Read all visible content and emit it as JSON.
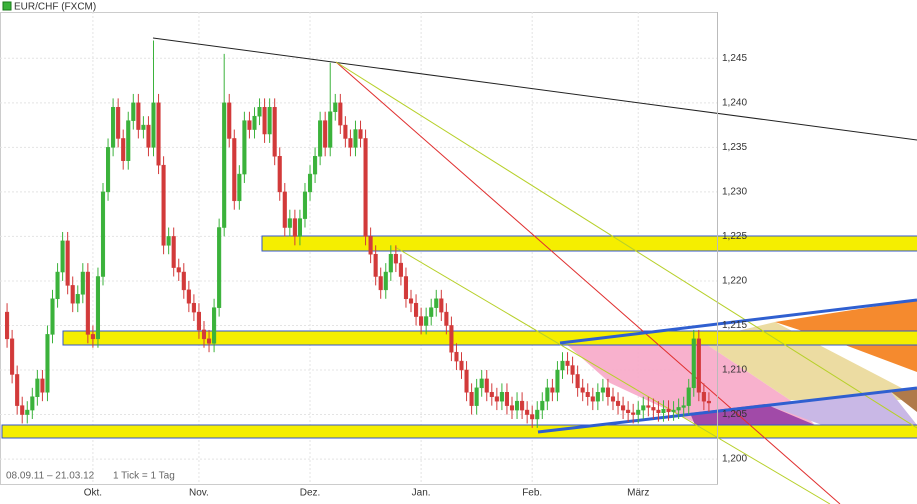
{
  "chart_data": {
    "type": "candlestick",
    "title": "EUR/CHF (FXCM)",
    "subtitle": "08.09.11 – 21.03.12",
    "note": "1 Tick = 1 Tag",
    "up_color": "#3bb23b",
    "down_color": "#d23a3a",
    "grid": true,
    "ylim": [
      1.1972,
      1.2502
    ],
    "yticks": [
      {
        "value": 1.2,
        "label": "1,200"
      },
      {
        "value": 1.205,
        "label": "1,205"
      },
      {
        "value": 1.21,
        "label": "1,210"
      },
      {
        "value": 1.215,
        "label": "1,215"
      },
      {
        "value": 1.22,
        "label": "1,220"
      },
      {
        "value": 1.225,
        "label": "1,225"
      },
      {
        "value": 1.23,
        "label": "1,230"
      },
      {
        "value": 1.235,
        "label": "1,235"
      },
      {
        "value": 1.24,
        "label": "1,240"
      },
      {
        "value": 1.245,
        "label": "1,245"
      }
    ],
    "categories": [
      null,
      null,
      null,
      null,
      null,
      null,
      null,
      null,
      null,
      null,
      null,
      null,
      null,
      null,
      null,
      null,
      null,
      "Okt.",
      null,
      null,
      null,
      null,
      null,
      null,
      null,
      null,
      null,
      null,
      null,
      null,
      null,
      null,
      null,
      null,
      null,
      null,
      null,
      null,
      "Nov.",
      null,
      null,
      null,
      null,
      null,
      null,
      null,
      null,
      null,
      null,
      null,
      null,
      null,
      null,
      null,
      null,
      null,
      null,
      null,
      null,
      null,
      "Dez.",
      null,
      null,
      null,
      null,
      null,
      null,
      null,
      null,
      null,
      null,
      null,
      null,
      null,
      null,
      null,
      null,
      null,
      null,
      null,
      null,
      null,
      "Jan.",
      null,
      null,
      null,
      null,
      null,
      null,
      null,
      null,
      null,
      null,
      null,
      null,
      null,
      null,
      null,
      null,
      null,
      null,
      null,
      null,
      null,
      "Feb.",
      null,
      null,
      null,
      null,
      null,
      null,
      null,
      null,
      null,
      null,
      null,
      null,
      null,
      null,
      null,
      null,
      null,
      null,
      null,
      null,
      "März",
      null,
      null,
      null,
      null,
      null,
      null,
      null,
      null,
      null,
      null,
      null,
      null,
      null,
      null
    ],
    "open": [
      1.2165,
      1.2135,
      1.2095,
      1.206,
      1.205,
      1.2055,
      1.207,
      1.209,
      1.2075,
      1.214,
      1.218,
      1.221,
      1.2245,
      1.2195,
      1.2175,
      1.2185,
      1.221,
      1.214,
      1.2135,
      1.2205,
      1.23,
      1.235,
      1.2395,
      1.236,
      1.2335,
      1.238,
      1.24,
      1.237,
      1.2375,
      1.235,
      1.24,
      1.233,
      1.224,
      1.225,
      1.2215,
      1.221,
      1.219,
      1.2175,
      1.2165,
      1.2145,
      1.2135,
      1.213,
      1.217,
      1.226,
      1.24,
      1.236,
      1.229,
      1.232,
      1.238,
      1.237,
      1.2385,
      1.2395,
      1.2365,
      1.2395,
      1.234,
      1.23,
      1.226,
      1.227,
      1.225,
      1.227,
      1.23,
      1.232,
      1.234,
      1.238,
      1.235,
      1.239,
      1.24,
      1.2375,
      1.236,
      1.235,
      1.237,
      1.236,
      1.225,
      1.223,
      1.2205,
      1.219,
      1.221,
      1.223,
      1.222,
      1.2205,
      1.218,
      1.2175,
      1.216,
      1.215,
      1.216,
      1.217,
      1.218,
      1.2165,
      1.215,
      1.212,
      1.211,
      1.21,
      1.2075,
      1.206,
      1.208,
      1.209,
      1.2075,
      1.207,
      1.2065,
      1.2075,
      1.206,
      1.2055,
      1.2065,
      1.2055,
      1.205,
      1.2045,
      1.2055,
      1.2065,
      1.208,
      1.2075,
      1.21,
      1.211,
      1.2105,
      1.2095,
      1.208,
      1.2075,
      1.207,
      1.2065,
      1.2075,
      1.208,
      1.207,
      1.2065,
      1.206,
      1.2055,
      1.2052,
      1.205,
      1.2055,
      1.206,
      1.2058,
      1.2055,
      1.2052,
      1.2056,
      1.2053,
      1.2055,
      1.2058,
      1.206,
      1.208,
      1.2135,
      1.2075,
      1.2065
    ],
    "high": [
      1.2175,
      1.2145,
      1.2105,
      1.207,
      1.2065,
      1.208,
      1.21,
      1.21,
      1.215,
      1.219,
      1.222,
      1.2255,
      1.2255,
      1.2205,
      1.2195,
      1.222,
      1.222,
      1.215,
      1.2215,
      1.231,
      1.236,
      1.2405,
      1.2405,
      1.237,
      1.239,
      1.241,
      1.241,
      1.2385,
      1.2385,
      1.247,
      1.241,
      1.234,
      1.226,
      1.226,
      1.2225,
      1.222,
      1.22,
      1.2185,
      1.2175,
      1.2155,
      1.2145,
      1.218,
      1.227,
      1.2455,
      1.241,
      1.237,
      1.233,
      1.239,
      1.239,
      1.2395,
      1.2405,
      1.2405,
      1.2405,
      1.2405,
      1.235,
      1.231,
      1.228,
      1.228,
      1.228,
      1.231,
      1.233,
      1.235,
      1.239,
      1.239,
      1.2445,
      1.241,
      1.241,
      1.2385,
      1.237,
      1.238,
      1.238,
      1.237,
      1.226,
      1.224,
      1.2215,
      1.222,
      1.224,
      1.224,
      1.223,
      1.2215,
      1.219,
      1.2185,
      1.217,
      1.217,
      1.218,
      1.219,
      1.219,
      1.2175,
      1.216,
      1.213,
      1.212,
      1.211,
      1.2085,
      1.209,
      1.21,
      1.21,
      1.2085,
      1.208,
      1.2085,
      1.2085,
      1.207,
      1.2075,
      1.2075,
      1.2065,
      1.206,
      1.2065,
      1.2075,
      1.209,
      1.209,
      1.211,
      1.212,
      1.212,
      1.2115,
      1.2105,
      1.209,
      1.2085,
      1.208,
      1.2085,
      1.209,
      1.209,
      1.208,
      1.2075,
      1.207,
      1.2065,
      1.2062,
      1.2065,
      1.207,
      1.207,
      1.2068,
      1.2065,
      1.2066,
      1.2066,
      1.2065,
      1.2068,
      1.207,
      1.209,
      1.2145,
      1.2145,
      1.2085,
      1.2075
    ],
    "low": [
      1.2125,
      1.2085,
      1.205,
      1.204,
      1.204,
      1.2045,
      1.206,
      1.2065,
      1.2065,
      1.213,
      1.217,
      1.22,
      1.2185,
      1.2165,
      1.2165,
      1.2175,
      1.213,
      1.2125,
      1.2125,
      1.2195,
      1.229,
      1.234,
      1.235,
      1.2325,
      1.2325,
      1.237,
      1.236,
      1.236,
      1.234,
      1.234,
      1.232,
      1.223,
      1.223,
      1.2205,
      1.22,
      1.218,
      1.2165,
      1.2155,
      1.2135,
      1.2125,
      1.212,
      1.212,
      1.216,
      1.225,
      1.235,
      1.228,
      1.228,
      1.231,
      1.236,
      1.236,
      1.2375,
      1.2355,
      1.2355,
      1.233,
      1.229,
      1.225,
      1.225,
      1.224,
      1.224,
      1.226,
      1.229,
      1.231,
      1.233,
      1.234,
      1.234,
      1.238,
      1.2365,
      1.235,
      1.234,
      1.234,
      1.235,
      1.224,
      1.222,
      1.2195,
      1.218,
      1.218,
      1.22,
      1.221,
      1.2195,
      1.217,
      1.2165,
      1.215,
      1.214,
      1.214,
      1.215,
      1.216,
      1.2155,
      1.214,
      1.211,
      1.21,
      1.209,
      1.2065,
      1.205,
      1.205,
      1.207,
      1.2065,
      1.206,
      1.2055,
      1.2055,
      1.205,
      1.2045,
      1.2045,
      1.2045,
      1.204,
      1.2035,
      1.2035,
      1.2045,
      1.2055,
      1.2065,
      1.2065,
      1.209,
      1.2095,
      1.2085,
      1.207,
      1.2065,
      1.206,
      1.2055,
      1.2055,
      1.2065,
      1.206,
      1.2055,
      1.205,
      1.2045,
      1.2042,
      1.204,
      1.204,
      1.2045,
      1.2048,
      1.2045,
      1.2042,
      1.2042,
      1.2043,
      1.2043,
      1.2045,
      1.2048,
      1.205,
      1.207,
      1.2065,
      1.2055,
      1.2053
    ],
    "close": [
      1.2135,
      1.2095,
      1.206,
      1.205,
      1.2055,
      1.207,
      1.209,
      1.2075,
      1.214,
      1.218,
      1.221,
      1.2245,
      1.2195,
      1.2175,
      1.2185,
      1.221,
      1.214,
      1.2135,
      1.2205,
      1.23,
      1.235,
      1.2395,
      1.236,
      1.2335,
      1.238,
      1.24,
      1.237,
      1.2375,
      1.235,
      1.24,
      1.233,
      1.224,
      1.225,
      1.2215,
      1.221,
      1.219,
      1.2175,
      1.2165,
      1.2145,
      1.2135,
      1.213,
      1.217,
      1.226,
      1.24,
      1.236,
      1.229,
      1.232,
      1.238,
      1.237,
      1.2385,
      1.2395,
      1.2365,
      1.2395,
      1.234,
      1.23,
      1.226,
      1.227,
      1.225,
      1.227,
      1.23,
      1.232,
      1.234,
      1.238,
      1.235,
      1.239,
      1.24,
      1.2375,
      1.236,
      1.235,
      1.237,
      1.236,
      1.225,
      1.223,
      1.2205,
      1.219,
      1.221,
      1.223,
      1.222,
      1.2205,
      1.218,
      1.2175,
      1.216,
      1.215,
      1.216,
      1.217,
      1.218,
      1.2165,
      1.215,
      1.212,
      1.211,
      1.21,
      1.2075,
      1.206,
      1.208,
      1.209,
      1.2075,
      1.207,
      1.2065,
      1.2075,
      1.206,
      1.2055,
      1.2065,
      1.2055,
      1.205,
      1.2045,
      1.2055,
      1.2065,
      1.208,
      1.2075,
      1.21,
      1.211,
      1.2105,
      1.2095,
      1.208,
      1.2075,
      1.207,
      1.2065,
      1.2075,
      1.208,
      1.207,
      1.2065,
      1.206,
      1.2055,
      1.2052,
      1.205,
      1.2055,
      1.206,
      1.2058,
      1.2055,
      1.2052,
      1.2056,
      1.2053,
      1.2055,
      1.2058,
      1.206,
      1.208,
      1.2135,
      1.2075,
      1.2065,
      1.2063
    ]
  }
}
